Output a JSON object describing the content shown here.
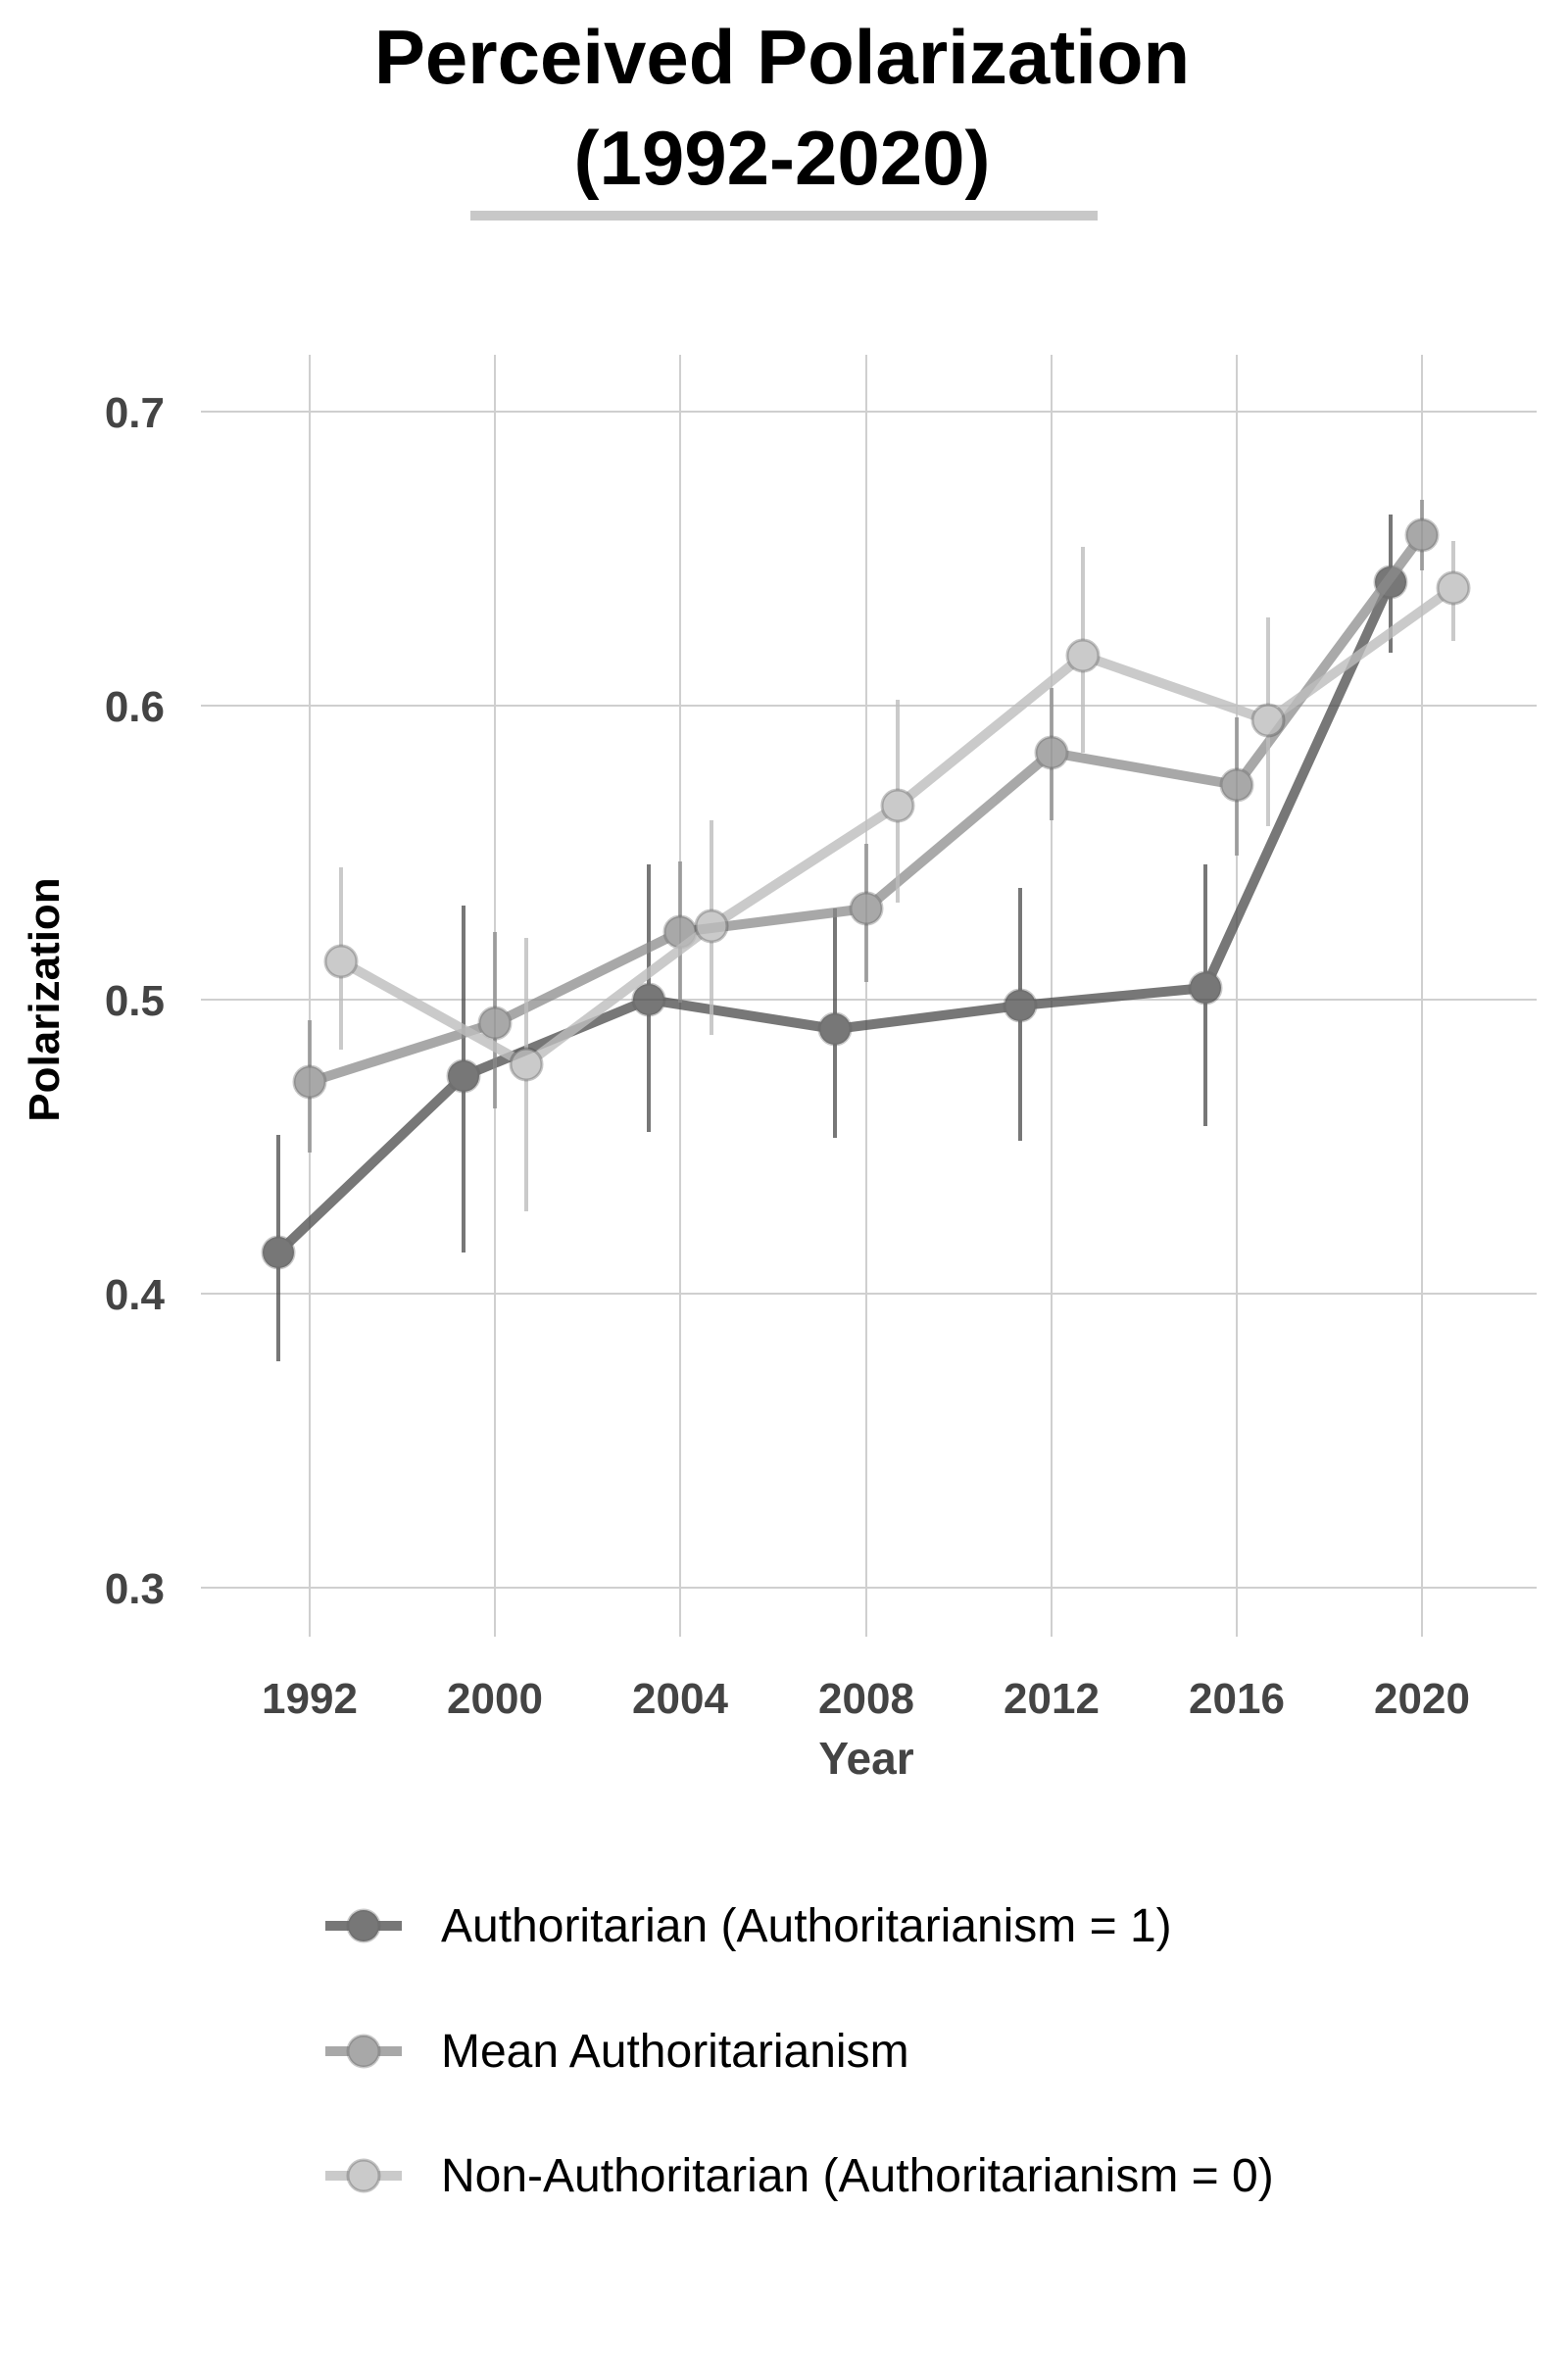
{
  "chart_data": {
    "type": "line",
    "title_line1": "Perceived Polarization",
    "title_line2": "(1992-2020)",
    "xlabel": "Year",
    "ylabel": "Polarization",
    "ylim": [
      0.3,
      0.7
    ],
    "yticks": [
      0.3,
      0.4,
      0.5,
      0.6,
      0.7
    ],
    "ytick_labels": [
      "0.3",
      "0.4",
      "0.5",
      "0.6",
      "0.7"
    ],
    "categories": [
      "1992",
      "2000",
      "2004",
      "2008",
      "2012",
      "2016",
      "2020"
    ],
    "grid": true,
    "legend_position": "bottom",
    "series": [
      {
        "name": "Authoritarian (Authoritarianism = 1)",
        "color": "#4a4a4a",
        "opacity": 0.75,
        "values": [
          0.414,
          0.474,
          0.5,
          0.49,
          0.498,
          0.504,
          0.642
        ],
        "lower": [
          0.377,
          0.414,
          0.455,
          0.453,
          0.452,
          0.457,
          0.618
        ],
        "upper": [
          0.454,
          0.532,
          0.546,
          0.531,
          0.538,
          0.546,
          0.665
        ]
      },
      {
        "name": "Mean Authoritarianism",
        "color": "#8c8c8c",
        "opacity": 0.75,
        "values": [
          0.472,
          0.492,
          0.523,
          0.531,
          0.584,
          0.573,
          0.658
        ],
        "lower": [
          0.448,
          0.463,
          0.499,
          0.506,
          0.561,
          0.549,
          0.646
        ],
        "upper": [
          0.493,
          0.523,
          0.547,
          0.553,
          0.606,
          0.596,
          0.67
        ]
      },
      {
        "name": "Non-Authoritarian (Authoritarianism = 0)",
        "color": "#bdbdbd",
        "opacity": 0.8,
        "values": [
          0.513,
          0.478,
          0.525,
          0.566,
          0.617,
          0.595,
          0.64
        ],
        "lower": [
          0.483,
          0.428,
          0.488,
          0.533,
          0.584,
          0.559,
          0.622
        ],
        "upper": [
          0.545,
          0.521,
          0.561,
          0.602,
          0.654,
          0.63,
          0.656
        ]
      }
    ]
  }
}
